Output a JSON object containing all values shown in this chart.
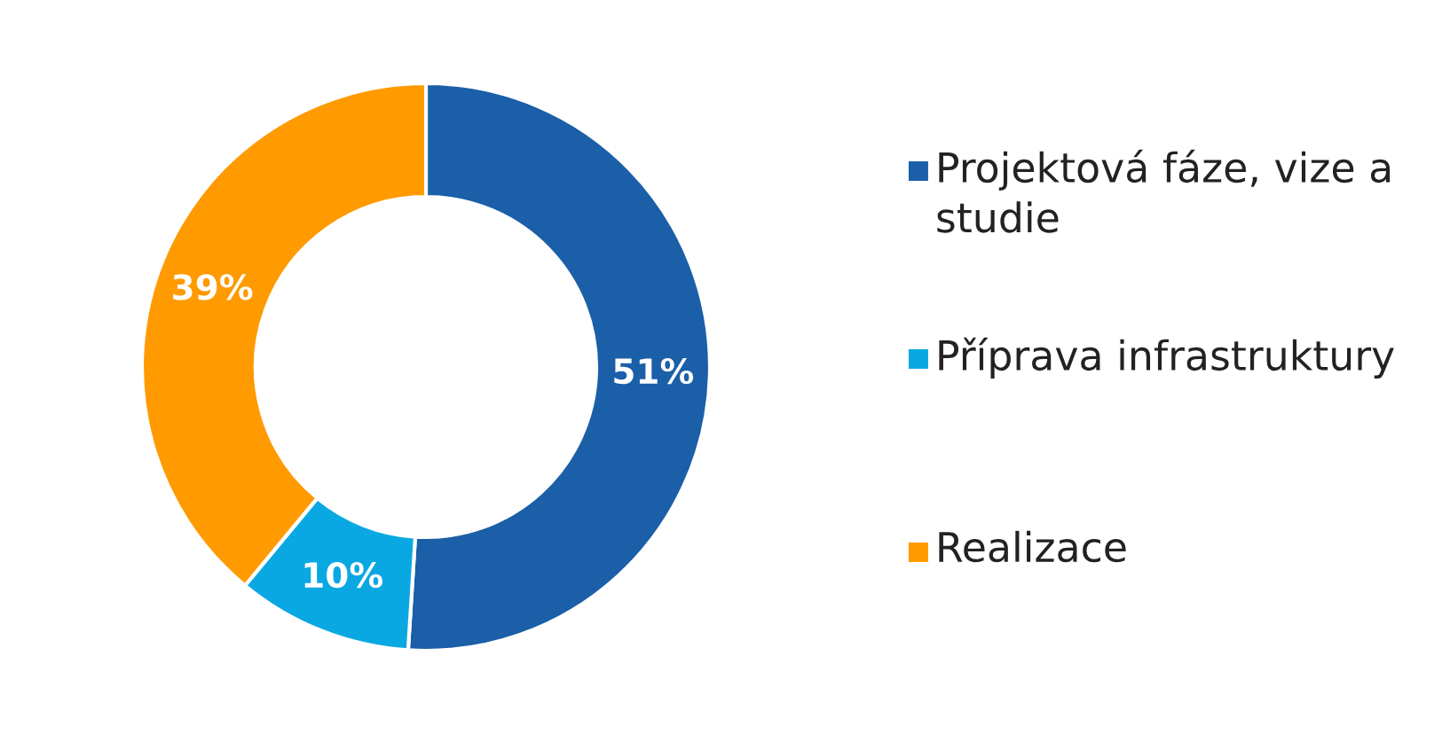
{
  "chart_data": {
    "type": "donut",
    "categories": [
      "Projektová fáze, vize a studie",
      "Příprava infrastruktury",
      "Realizace"
    ],
    "values": [
      51,
      10,
      39
    ],
    "colors": [
      "#1a5fa8",
      "#0aa8e2",
      "#ff9a00"
    ],
    "value_labels": [
      "51%",
      "10%",
      "39%"
    ],
    "legend": "right"
  }
}
